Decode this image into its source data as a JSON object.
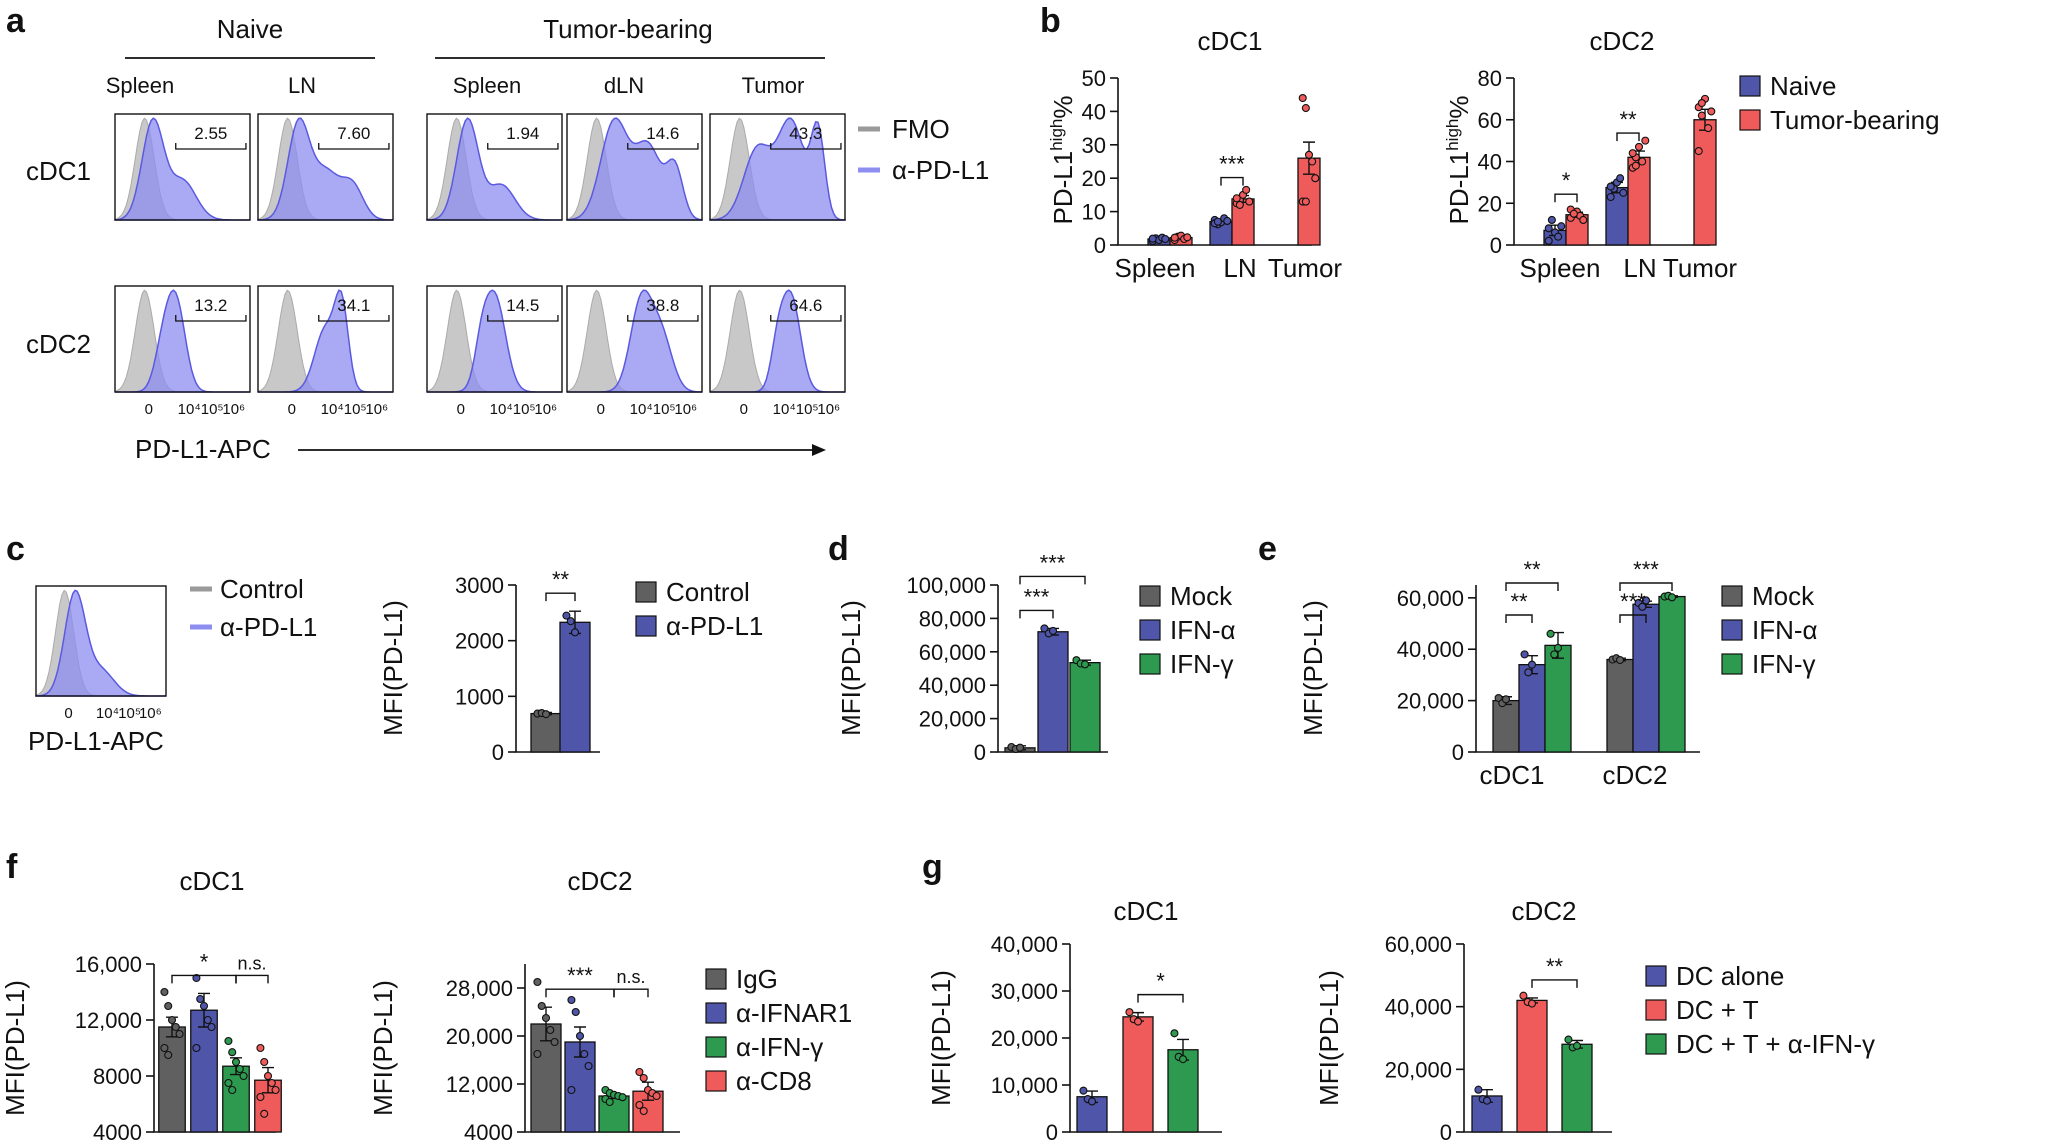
{
  "colors": {
    "naive": "#4f55a8",
    "tumor": "#ef5b5b",
    "ctrl": "#606060",
    "blue": "#4f55a8",
    "green": "#2e9a4f",
    "red": "#ef5b5b",
    "fmo": "#c8c8c8",
    "hist": "#8e8ef0",
    "histline": "#5a5ae0"
  },
  "panel_labels": [
    "a",
    "b",
    "c",
    "d",
    "e",
    "f",
    "g"
  ],
  "panel_a": {
    "groups": [
      "Naive",
      "Tumor-bearing"
    ],
    "tissues": [
      "Spleen",
      "LN",
      "Spleen",
      "dLN",
      "Tumor"
    ],
    "rows": [
      "cDC1",
      "cDC2"
    ],
    "values": [
      [
        "2.55",
        "7.60",
        "1.94",
        "14.6",
        "43.3"
      ],
      [
        "13.2",
        "34.1",
        "14.5",
        "38.8",
        "64.6"
      ]
    ],
    "xticks": [
      "0",
      "10⁴",
      "10⁵",
      "10⁶"
    ],
    "xlabel": "PD-L1-APC",
    "legend": [
      "FMO",
      "α-PD-L1"
    ]
  },
  "panel_c_hist": {
    "xlabel": "PD-L1-APC",
    "xticks": [
      "0",
      "10⁴",
      "10⁵",
      "10⁶"
    ],
    "legend": [
      "Control",
      "α-PD-L1"
    ]
  },
  "chart_data": [
    {
      "panel": "b",
      "type": "bar",
      "title": "cDC1",
      "categories": [
        "Spleen",
        "LN",
        "Tumor"
      ],
      "ylabel": "PD-L1",
      "ylabel_sup": "high",
      "ylabel_suffix": "%",
      "ylim": [
        0,
        50
      ],
      "yticks": [
        0,
        10,
        20,
        30,
        40,
        50
      ],
      "yticklabels": [
        "0",
        "10",
        "20",
        "30",
        "40",
        "50"
      ],
      "series": [
        {
          "name": "Naive",
          "values": [
            1.8,
            7.0,
            null
          ],
          "errors": [
            0.4,
            0.6,
            null
          ]
        },
        {
          "name": "Tumor-bearing",
          "values": [
            2.2,
            13.8,
            26.0
          ],
          "errors": [
            0.5,
            1.0,
            4.8
          ]
        }
      ],
      "points": [
        [
          [
            1.2,
            2.0,
            1.5,
            2.2,
            1.8,
            1.9
          ],
          [
            7.5,
            6.2,
            6.8,
            8.0,
            7.2,
            6.5,
            7.0
          ],
          []
        ],
        [
          [
            1.5,
            2.5,
            2.8,
            1.8,
            2.3,
            2.2
          ],
          [
            12.5,
            13.5,
            15.0,
            16.5,
            13.0,
            14.0,
            12.0
          ],
          [
            44,
            41,
            27,
            25,
            20,
            13,
            13
          ]
        ]
      ],
      "annotations": [
        {
          "category": 1,
          "text": "***"
        }
      ]
    },
    {
      "panel": "b",
      "type": "bar",
      "title": "cDC2",
      "categories": [
        "Spleen",
        "LN",
        "Tumor"
      ],
      "ylabel": "PD-L1",
      "ylabel_sup": "high",
      "ylabel_suffix": "%",
      "ylim": [
        0,
        80
      ],
      "yticks": [
        0,
        20,
        40,
        60,
        80
      ],
      "yticklabels": [
        "0",
        "20",
        "40",
        "60",
        "80"
      ],
      "legend": [
        "Naive",
        "Tumor-bearing"
      ],
      "series": [
        {
          "name": "Naive",
          "values": [
            7.0,
            27.5,
            null
          ],
          "errors": [
            2.5,
            2.5,
            null
          ]
        },
        {
          "name": "Tumor-bearing",
          "values": [
            14.5,
            42.0,
            60.0
          ],
          "errors": [
            1.2,
            3.0,
            5.0
          ]
        }
      ],
      "points": [
        [
          [
            2,
            12,
            6,
            4,
            9,
            8
          ],
          [
            23,
            27,
            30,
            32,
            25,
            28
          ],
          []
        ],
        [
          [
            13,
            15,
            16,
            14,
            12,
            17,
            15
          ],
          [
            37,
            42,
            47,
            40,
            50,
            44,
            38
          ],
          [
            66,
            62,
            70,
            56,
            64,
            45,
            68
          ]
        ]
      ],
      "annotations": [
        {
          "category": 0,
          "text": "*"
        },
        {
          "category": 1,
          "text": "**"
        }
      ]
    },
    {
      "panel": "c",
      "type": "bar",
      "title": "",
      "categories": [
        "Control",
        "α-PD-L1"
      ],
      "ylabel": "MFI(PD-L1)",
      "ylim": [
        0,
        3000
      ],
      "yticks": [
        0,
        1000,
        2000,
        3000
      ],
      "yticklabels": [
        "0",
        "1000",
        "2000",
        "3000"
      ],
      "legend": [
        "Control",
        "α-PD-L1"
      ],
      "values": [
        690,
        2330
      ],
      "errors": [
        20,
        200
      ],
      "points": [
        [
          690,
          700,
          680
        ],
        [
          2450,
          2350,
          2150
        ]
      ],
      "annotations": [
        {
          "from": 0,
          "to": 1,
          "text": "**"
        }
      ]
    },
    {
      "panel": "d",
      "type": "bar",
      "title": "",
      "categories": [
        "Mock",
        "IFN-α",
        "IFN-γ"
      ],
      "ylabel": "MFI(PD-L1)",
      "ylim": [
        0,
        100000
      ],
      "yticks": [
        0,
        20000,
        40000,
        60000,
        80000,
        100000
      ],
      "yticklabels": [
        "0",
        "20,000",
        "40,000",
        "60,000",
        "80,000",
        "100,000"
      ],
      "legend": [
        "Mock",
        "IFN-α",
        "IFN-γ"
      ],
      "values": [
        2500,
        72000,
        53500
      ],
      "errors": [
        1200,
        2000,
        1500
      ],
      "points": [
        [
          3000,
          1800,
          2600
        ],
        [
          74000,
          71000,
          72500
        ],
        [
          55000,
          53000,
          52500
        ]
      ],
      "annotations": [
        {
          "from": 0,
          "to": 1,
          "text": "***"
        },
        {
          "from": 0,
          "to": 2,
          "text": "***"
        }
      ]
    },
    {
      "panel": "e",
      "type": "bar",
      "title": "",
      "categories": [
        "cDC1",
        "cDC2"
      ],
      "ylabel": "MFI(PD-L1)",
      "ylim": [
        0,
        65000
      ],
      "yticks": [
        0,
        20000,
        40000,
        60000
      ],
      "yticklabels": [
        "0",
        "20,000",
        "40,000",
        "60,000"
      ],
      "legend": [
        "Mock",
        "IFN-α",
        "IFN-γ"
      ],
      "series": [
        {
          "name": "Mock",
          "values": [
            20000,
            36000
          ],
          "errors": [
            1500,
            500
          ]
        },
        {
          "name": "IFN-α",
          "values": [
            34000,
            57500
          ],
          "errors": [
            3500,
            1200
          ]
        },
        {
          "name": "IFN-γ",
          "values": [
            41500,
            60500
          ],
          "errors": [
            5000,
            300
          ]
        }
      ],
      "points": [
        [
          [
            21000,
            19000,
            20500
          ],
          [
            36000,
            36500,
            35800
          ]
        ],
        [
          [
            38000,
            31000,
            34000
          ],
          [
            58000,
            56500,
            59000
          ]
        ],
        [
          [
            46000,
            38000,
            40500
          ],
          [
            60500,
            60800,
            60200
          ]
        ]
      ],
      "annotations": [
        {
          "category": 0,
          "from": 0,
          "to": 1,
          "text": "**"
        },
        {
          "category": 0,
          "from": 0,
          "to": 2,
          "text": "**"
        },
        {
          "category": 1,
          "from": 0,
          "to": 1,
          "text": "***"
        },
        {
          "category": 1,
          "from": 0,
          "to": 2,
          "text": "***"
        }
      ]
    },
    {
      "panel": "f",
      "type": "bar",
      "title": "cDC1",
      "categories": [
        "IgG",
        "α-IFNAR1",
        "α-IFN-γ",
        "α-CD8"
      ],
      "ylabel": "MFI(PD-L1)",
      "ylim": [
        4000,
        16000
      ],
      "yticks": [
        4000,
        8000,
        12000,
        16000
      ],
      "yticklabels": [
        "4000",
        "8000",
        "12,000",
        "16,000"
      ],
      "values": [
        11500,
        12700,
        8700,
        7700
      ],
      "errors": [
        700,
        1200,
        600,
        900
      ],
      "points": [
        [
          14000,
          13000,
          12000,
          11500,
          11000,
          10000,
          9500
        ],
        [
          15000,
          13500,
          13000,
          12000,
          11500,
          10000
        ],
        [
          10500,
          9700,
          9000,
          8500,
          8000,
          7500,
          7000
        ],
        [
          10000,
          9000,
          8000,
          7500,
          7000,
          6500,
          5300
        ]
      ],
      "annotations": [
        {
          "from": 0,
          "to": 2,
          "text": "*"
        },
        {
          "from": 2,
          "to": 3,
          "text": "n.s."
        }
      ]
    },
    {
      "panel": "f",
      "type": "bar",
      "title": "cDC2",
      "categories": [
        "IgG",
        "α-IFNAR1",
        "α-IFN-γ",
        "α-CD8"
      ],
      "ylabel": "MFI(PD-L1)",
      "ylim": [
        4000,
        32000
      ],
      "yticks": [
        4000,
        12000,
        20000,
        28000
      ],
      "yticklabels": [
        "4000",
        "12,000",
        "20,000",
        "28,000"
      ],
      "legend": [
        "IgG",
        "α-IFNAR1",
        "α-IFN-γ",
        "α-CD8"
      ],
      "values": [
        22000,
        19000,
        10000,
        10800
      ],
      "errors": [
        2800,
        2500,
        400,
        1500
      ],
      "points": [
        [
          29000,
          25000,
          23000,
          21000,
          19000,
          17000
        ],
        [
          26000,
          24000,
          20000,
          17000,
          15000,
          11000
        ],
        [
          11000,
          10500,
          10200,
          10000,
          9800,
          9500,
          9000
        ],
        [
          14000,
          13000,
          11000,
          10500,
          10000,
          8500,
          7500
        ]
      ],
      "annotations": [
        {
          "from": 0,
          "to": 2,
          "text": "***"
        },
        {
          "from": 2,
          "to": 3,
          "text": "n.s."
        }
      ]
    },
    {
      "panel": "g",
      "type": "bar",
      "title": "cDC1",
      "categories": [
        "DC alone",
        "DC + T",
        "DC + T + α-IFN-γ"
      ],
      "ylabel": "MFI(PD-L1)",
      "ylim": [
        0,
        40000
      ],
      "yticks": [
        0,
        10000,
        20000,
        30000,
        40000
      ],
      "yticklabels": [
        "0",
        "10,000",
        "20,000",
        "30,000",
        "40,000"
      ],
      "values": [
        7500,
        24500,
        17500
      ],
      "errors": [
        1200,
        900,
        2200
      ],
      "points": [
        [
          8800,
          7000,
          6500
        ],
        [
          25500,
          24000,
          23500
        ],
        [
          21000,
          16000,
          15500
        ]
      ],
      "annotations": [
        {
          "from": 1,
          "to": 2,
          "text": "*"
        }
      ]
    },
    {
      "panel": "g",
      "type": "bar",
      "title": "cDC2",
      "categories": [
        "DC alone",
        "DC + T",
        "DC + T + α-IFN-γ"
      ],
      "ylabel": "MFI(PD-L1)",
      "ylim": [
        0,
        60000
      ],
      "yticks": [
        0,
        20000,
        40000,
        60000
      ],
      "yticklabels": [
        "0",
        "20,000",
        "40,000",
        "60,000"
      ],
      "legend": [
        "DC alone",
        "DC + T",
        "DC + T + α-IFN-γ"
      ],
      "values": [
        11500,
        42000,
        28000
      ],
      "errors": [
        2000,
        800,
        1200
      ],
      "points": [
        [
          13500,
          10500,
          10000
        ],
        [
          43500,
          41500,
          41000
        ],
        [
          29500,
          27000,
          27500
        ]
      ],
      "annotations": [
        {
          "from": 1,
          "to": 2,
          "text": "**"
        }
      ]
    }
  ]
}
